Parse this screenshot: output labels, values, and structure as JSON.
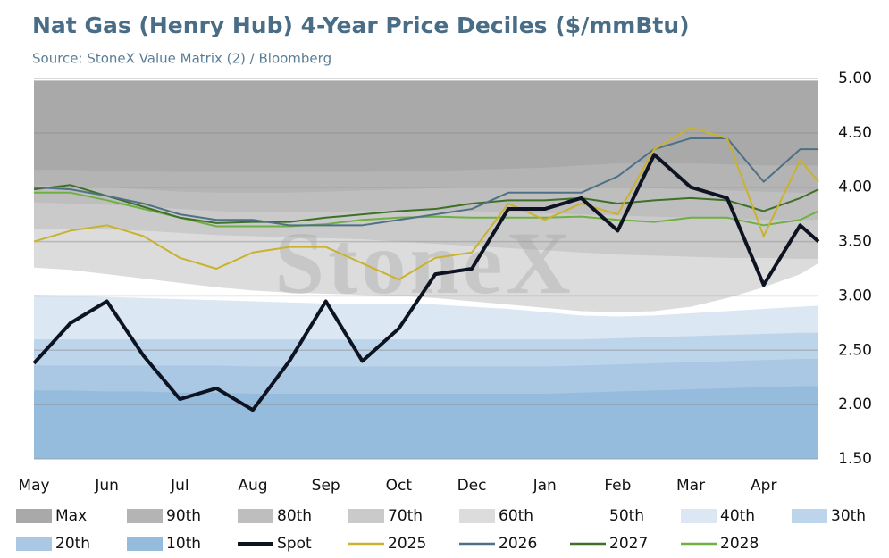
{
  "chart_data": {
    "type": "line",
    "title": "Nat Gas (Henry Hub) 4-Year Price Deciles ($/mmBtu)",
    "subtitle": "Source: StoneX Value Matrix (2) / Bloomberg",
    "watermark": "StoneX",
    "x": [
      0,
      0.5,
      1,
      1.5,
      2,
      2.5,
      3,
      3.5,
      4,
      4.5,
      5,
      5.5,
      6,
      6.5,
      7,
      7.5,
      8,
      8.5,
      9,
      9.5,
      10,
      10.5,
      10.75
    ],
    "xlim": [
      0,
      10.75
    ],
    "xticks": [
      {
        "value": 0,
        "label": "May"
      },
      {
        "value": 1,
        "label": "Jun"
      },
      {
        "value": 2,
        "label": "Jul"
      },
      {
        "value": 3,
        "label": "Aug"
      },
      {
        "value": 4,
        "label": "Sep"
      },
      {
        "value": 5,
        "label": "Oct"
      },
      {
        "value": 6,
        "label": "Dec"
      },
      {
        "value": 7,
        "label": "Jan"
      },
      {
        "value": 8,
        "label": "Feb"
      },
      {
        "value": 9,
        "label": "Mar"
      },
      {
        "value": 10,
        "label": "Apr"
      }
    ],
    "ylim": [
      1.5,
      5.0
    ],
    "yticks": [
      {
        "value": 1.5,
        "label": "1.50"
      },
      {
        "value": 2,
        "label": "2.00"
      },
      {
        "value": 2.5,
        "label": "2.50"
      },
      {
        "value": 3,
        "label": "3.00"
      },
      {
        "value": 3.5,
        "label": "3.50"
      },
      {
        "value": 4,
        "label": "4.00"
      },
      {
        "value": 4.5,
        "label": "4.50"
      },
      {
        "value": 5,
        "label": "5.00"
      }
    ],
    "grid": true,
    "series": [
      {
        "name": "Max",
        "style": "area",
        "color": "#a9a9a9",
        "values": [
          4.98,
          4.98,
          4.98,
          4.98,
          4.98,
          4.98,
          4.98,
          4.98,
          4.98,
          4.98,
          4.98,
          4.98,
          4.98,
          4.98,
          4.98,
          4.98,
          4.98,
          4.98,
          4.98,
          4.98,
          4.98,
          4.98,
          4.98
        ]
      },
      {
        "name": "90th",
        "style": "area",
        "color": "#b4b4b4",
        "values": [
          4.16,
          4.16,
          4.15,
          4.15,
          4.14,
          4.14,
          4.14,
          4.14,
          4.14,
          4.14,
          4.15,
          4.15,
          4.16,
          4.17,
          4.18,
          4.2,
          4.22,
          4.22,
          4.22,
          4.21,
          4.2,
          4.2,
          4.2
        ]
      },
      {
        "name": "80th",
        "style": "area",
        "color": "#bebebe",
        "values": [
          4.02,
          4.01,
          4.0,
          3.98,
          3.96,
          3.95,
          3.95,
          3.95,
          3.96,
          3.97,
          3.98,
          3.99,
          4.0,
          4.0,
          4.0,
          4.0,
          4.0,
          3.99,
          3.98,
          3.97,
          3.96,
          3.95,
          3.95
        ]
      },
      {
        "name": "70th",
        "style": "area",
        "color": "#cacaca",
        "values": [
          3.86,
          3.85,
          3.84,
          3.82,
          3.8,
          3.78,
          3.77,
          3.77,
          3.77,
          3.78,
          3.78,
          3.78,
          3.78,
          3.77,
          3.76,
          3.75,
          3.74,
          3.73,
          3.72,
          3.71,
          3.7,
          3.7,
          3.7
        ]
      },
      {
        "name": "60th",
        "style": "area",
        "color": "#dcdcdc",
        "values": [
          3.62,
          3.62,
          3.61,
          3.6,
          3.58,
          3.56,
          3.55,
          3.54,
          3.53,
          3.52,
          3.5,
          3.48,
          3.46,
          3.44,
          3.42,
          3.4,
          3.38,
          3.37,
          3.36,
          3.35,
          3.35,
          3.34,
          3.34
        ]
      },
      {
        "name": "50th",
        "style": "area",
        "color": "#ffffff",
        "values": [
          3.26,
          3.24,
          3.2,
          3.16,
          3.12,
          3.08,
          3.05,
          3.03,
          3.02,
          3.01,
          3.0,
          2.98,
          2.95,
          2.92,
          2.89,
          2.86,
          2.85,
          2.86,
          2.9,
          2.98,
          3.08,
          3.2,
          3.3
        ]
      },
      {
        "name": "40th",
        "style": "area",
        "color": "#dbe7f2",
        "values": [
          3.01,
          3.0,
          2.99,
          2.98,
          2.97,
          2.96,
          2.95,
          2.94,
          2.93,
          2.93,
          2.93,
          2.92,
          2.9,
          2.88,
          2.85,
          2.82,
          2.81,
          2.82,
          2.84,
          2.86,
          2.88,
          2.9,
          2.91
        ]
      },
      {
        "name": "30th",
        "style": "area",
        "color": "#bdd5ea",
        "values": [
          2.6,
          2.6,
          2.6,
          2.6,
          2.6,
          2.6,
          2.6,
          2.6,
          2.6,
          2.6,
          2.6,
          2.6,
          2.6,
          2.6,
          2.6,
          2.6,
          2.61,
          2.62,
          2.63,
          2.64,
          2.65,
          2.66,
          2.66
        ]
      },
      {
        "name": "20th",
        "style": "area",
        "color": "#aac8e4",
        "values": [
          2.36,
          2.36,
          2.36,
          2.36,
          2.36,
          2.36,
          2.35,
          2.35,
          2.35,
          2.35,
          2.35,
          2.35,
          2.35,
          2.35,
          2.35,
          2.36,
          2.37,
          2.38,
          2.39,
          2.4,
          2.41,
          2.42,
          2.42
        ]
      },
      {
        "name": "10th",
        "style": "area",
        "color": "#95bcdd",
        "values": [
          2.13,
          2.13,
          2.12,
          2.12,
          2.11,
          2.11,
          2.1,
          2.1,
          2.1,
          2.1,
          2.1,
          2.1,
          2.1,
          2.1,
          2.1,
          2.11,
          2.12,
          2.13,
          2.14,
          2.15,
          2.16,
          2.17,
          2.17
        ]
      },
      {
        "name": "Spot",
        "style": "line",
        "color": "#0d1321",
        "values": [
          2.38,
          2.75,
          2.95,
          2.45,
          2.05,
          2.15,
          1.95,
          2.4,
          2.95,
          2.4,
          2.7,
          3.2,
          3.25,
          3.8,
          3.8,
          3.9,
          3.6,
          4.3,
          4.0,
          3.9,
          3.1,
          3.65,
          3.5
        ]
      },
      {
        "name": "2025",
        "style": "line",
        "color": "#c9b22e",
        "values": [
          3.5,
          3.6,
          3.65,
          3.55,
          3.35,
          3.25,
          3.4,
          3.45,
          3.45,
          3.3,
          3.15,
          3.35,
          3.4,
          3.85,
          3.7,
          3.85,
          3.75,
          4.35,
          4.55,
          4.45,
          3.55,
          4.25,
          4.05
        ]
      },
      {
        "name": "2026",
        "style": "line",
        "color": "#4f7186",
        "values": [
          4.0,
          3.98,
          3.92,
          3.85,
          3.75,
          3.7,
          3.7,
          3.65,
          3.65,
          3.65,
          3.7,
          3.75,
          3.8,
          3.95,
          3.95,
          3.95,
          4.1,
          4.35,
          4.45,
          4.45,
          4.05,
          4.35,
          4.35
        ]
      },
      {
        "name": "2027",
        "style": "line",
        "color": "#3e7028",
        "values": [
          3.98,
          4.02,
          3.92,
          3.82,
          3.72,
          3.67,
          3.68,
          3.68,
          3.72,
          3.75,
          3.78,
          3.8,
          3.85,
          3.88,
          3.88,
          3.9,
          3.85,
          3.88,
          3.9,
          3.88,
          3.78,
          3.9,
          3.98
        ]
      },
      {
        "name": "2028",
        "style": "line",
        "color": "#6fb043",
        "values": [
          3.95,
          3.95,
          3.88,
          3.8,
          3.72,
          3.64,
          3.64,
          3.64,
          3.66,
          3.7,
          3.72,
          3.73,
          3.72,
          3.72,
          3.72,
          3.73,
          3.7,
          3.68,
          3.72,
          3.72,
          3.65,
          3.7,
          3.78
        ]
      }
    ]
  }
}
